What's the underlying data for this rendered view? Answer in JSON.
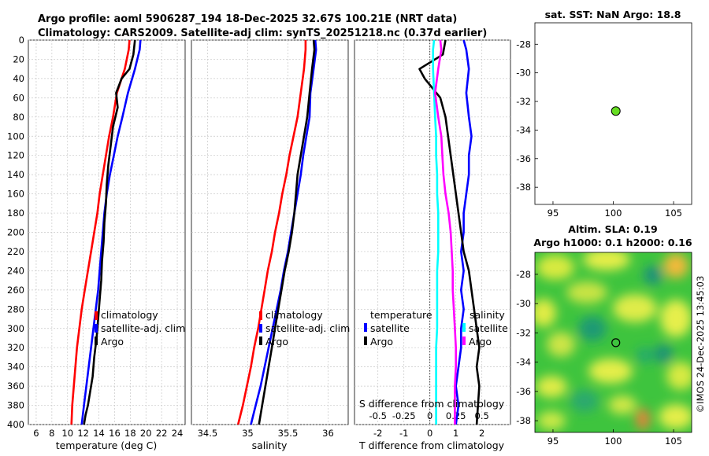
{
  "header": {
    "title1": "Argo profile: aoml 5906287_194 18-Dec-2025 32.67S 100.21E (NRT data)",
    "title2": "Climatology: CARS2009. Satellite-adj clim: synTS_20251218.nc (0.37d earlier)"
  },
  "colors": {
    "climatology": "#ff0000",
    "satellite": "#0000ff",
    "argo": "#000000",
    "salinity_diff": "#ff00ff",
    "temperature_diff": "#00ffff",
    "dot": "#66dd22"
  },
  "chart_data": [
    {
      "type": "line",
      "id": "temperature",
      "xlabel": "temperature (deg C)",
      "ylabel": "",
      "xlim": [
        5,
        25
      ],
      "ylim": [
        0,
        400
      ],
      "y_inverted": true,
      "xticks": [
        6,
        8,
        10,
        12,
        14,
        16,
        18,
        20,
        22,
        24
      ],
      "yticks": [
        0,
        20,
        40,
        60,
        80,
        100,
        120,
        140,
        160,
        180,
        200,
        220,
        240,
        260,
        280,
        300,
        320,
        340,
        360,
        380,
        400
      ],
      "grid": true,
      "legend": [
        "climatology",
        "satellite-adj. clim",
        "Argo"
      ],
      "legend_position": "lower-right",
      "series": [
        {
          "name": "climatology",
          "color_key": "climatology",
          "x": [
            17.9,
            17.8,
            17.3,
            16.3,
            15.8,
            15.3,
            14.9,
            14.5,
            14.1,
            13.8,
            13.4,
            13.0,
            12.6,
            12.2,
            11.8,
            11.5,
            11.2,
            11.0,
            10.8,
            10.6,
            10.5
          ],
          "y": [
            0,
            10,
            30,
            55,
            80,
            100,
            120,
            140,
            160,
            180,
            200,
            220,
            240,
            260,
            280,
            300,
            320,
            340,
            360,
            380,
            400
          ]
        },
        {
          "name": "satellite-adj. clim",
          "color_key": "satellite",
          "x": [
            19.3,
            19.2,
            18.6,
            17.7,
            17.0,
            16.4,
            15.9,
            15.4,
            15.0,
            14.7,
            14.5,
            14.3,
            14.1,
            13.9,
            13.6,
            13.3,
            13.0,
            12.7,
            12.4,
            12.1,
            11.8
          ],
          "y": [
            0,
            10,
            30,
            55,
            80,
            100,
            120,
            140,
            160,
            180,
            200,
            220,
            240,
            260,
            280,
            300,
            320,
            340,
            360,
            380,
            400
          ]
        },
        {
          "name": "Argo",
          "color_key": "argo",
          "x": [
            18.6,
            18.4,
            17.9,
            16.9,
            16.2,
            16.4,
            15.8,
            15.5,
            15.2,
            15.0,
            14.9,
            14.7,
            14.6,
            14.4,
            14.3,
            14.1,
            13.9,
            13.7,
            13.4,
            13.2,
            12.8,
            12.6,
            12.3,
            12.1
          ],
          "y": [
            0,
            15,
            30,
            40,
            55,
            70,
            90,
            110,
            130,
            150,
            170,
            190,
            210,
            230,
            250,
            270,
            290,
            310,
            330,
            350,
            370,
            380,
            390,
            400
          ]
        }
      ]
    },
    {
      "type": "line",
      "id": "salinity",
      "xlabel": "salinity",
      "ylabel": "",
      "xlim": [
        34.3,
        36.25
      ],
      "ylim": [
        0,
        400
      ],
      "y_inverted": true,
      "xticks": [
        34.5,
        35,
        35.5,
        36
      ],
      "xtick_labels": [
        "34.5",
        "35",
        "35.5",
        "36"
      ],
      "grid": true,
      "legend": [
        "climatology",
        "satellite-adj. clim",
        "Argo"
      ],
      "legend_position": "lower-right",
      "series": [
        {
          "name": "climatology",
          "color_key": "climatology",
          "x": [
            35.72,
            35.72,
            35.7,
            35.66,
            35.62,
            35.57,
            35.52,
            35.48,
            35.43,
            35.39,
            35.34,
            35.3,
            35.25,
            35.21,
            35.17,
            35.13,
            35.08,
            35.04,
            34.99,
            34.94,
            34.88
          ],
          "y": [
            0,
            10,
            30,
            55,
            80,
            100,
            120,
            140,
            160,
            180,
            200,
            220,
            240,
            260,
            280,
            300,
            320,
            340,
            360,
            380,
            400
          ]
        },
        {
          "name": "satellite-adj. clim",
          "color_key": "satellite",
          "x": [
            35.84,
            35.85,
            35.82,
            35.78,
            35.77,
            35.73,
            35.69,
            35.66,
            35.62,
            35.58,
            35.54,
            35.5,
            35.45,
            35.41,
            35.36,
            35.31,
            35.26,
            35.21,
            35.16,
            35.1,
            35.04
          ],
          "y": [
            0,
            10,
            30,
            55,
            80,
            100,
            120,
            140,
            160,
            180,
            200,
            220,
            240,
            260,
            280,
            300,
            320,
            340,
            360,
            380,
            400
          ]
        },
        {
          "name": "Argo",
          "color_key": "argo",
          "x": [
            35.82,
            35.83,
            35.8,
            35.77,
            35.74,
            35.7,
            35.66,
            35.62,
            35.6,
            35.58,
            35.55,
            35.51,
            35.46,
            35.42,
            35.38,
            35.34,
            35.3,
            35.26,
            35.22,
            35.18,
            35.14
          ],
          "y": [
            0,
            10,
            30,
            55,
            80,
            100,
            120,
            140,
            160,
            180,
            200,
            220,
            240,
            260,
            280,
            300,
            320,
            340,
            360,
            380,
            400
          ]
        }
      ]
    },
    {
      "type": "line",
      "id": "difference",
      "xlabel": "T difference from climatology",
      "x2label": "S difference from climatology",
      "xlim": [
        -2.9,
        3.1
      ],
      "ylim": [
        0,
        400
      ],
      "y_inverted": true,
      "xticks": [
        -2,
        -1,
        0,
        1,
        2
      ],
      "xtick_labels": [
        "-2",
        "-1",
        "0",
        "1",
        "2"
      ],
      "x2ticks": [
        -0.5,
        -0.25,
        0,
        0.25,
        0.5
      ],
      "x2tick_labels": [
        "-0.5",
        "-0.25",
        "0",
        "0.25",
        "0.5"
      ],
      "x2lim": [
        -0.725,
        0.775
      ],
      "zero_line": true,
      "grid": true,
      "legend_temperature": {
        "title": "temperature",
        "items": [
          "satellite",
          "Argo"
        ]
      },
      "legend_salinity": {
        "title": "salinity",
        "items": [
          "satellite",
          "Argo"
        ]
      },
      "series": [
        {
          "name": "temperature satellite",
          "color_key": "satellite",
          "axis": "T",
          "x": [
            1.3,
            1.4,
            1.5,
            1.4,
            1.5,
            1.6,
            1.5,
            1.5,
            1.4,
            1.3,
            1.3,
            1.2,
            1.3,
            1.2,
            1.3,
            1.2,
            1.2,
            1.1,
            1.0,
            1.1,
            1.0
          ],
          "y": [
            0,
            10,
            30,
            55,
            80,
            100,
            120,
            140,
            160,
            180,
            200,
            220,
            240,
            260,
            280,
            300,
            320,
            340,
            360,
            380,
            400
          ]
        },
        {
          "name": "temperature Argo",
          "color_key": "argo",
          "axis": "T",
          "x": [
            0.6,
            0.5,
            -0.4,
            -0.2,
            0.4,
            0.6,
            0.7,
            0.8,
            0.9,
            1.0,
            1.1,
            1.2,
            1.3,
            1.5,
            1.6,
            1.7,
            1.8,
            1.9,
            1.8,
            1.9,
            1.8
          ],
          "y": [
            0,
            15,
            30,
            40,
            60,
            80,
            100,
            120,
            140,
            160,
            180,
            200,
            220,
            240,
            260,
            280,
            300,
            320,
            340,
            360,
            400
          ]
        },
        {
          "name": "salinity satellite",
          "color_key": "temperature_diff",
          "axis": "S",
          "x": [
            0.04,
            0.03,
            0.03,
            0.04,
            0.05,
            0.06,
            0.06,
            0.07,
            0.07,
            0.08,
            0.08,
            0.08,
            0.07,
            0.07,
            0.07,
            0.07,
            0.06,
            0.06,
            0.06,
            0.06,
            0.06
          ],
          "y": [
            0,
            10,
            30,
            55,
            80,
            100,
            120,
            140,
            160,
            180,
            200,
            220,
            240,
            260,
            280,
            300,
            320,
            340,
            360,
            380,
            400
          ]
        },
        {
          "name": "salinity Argo",
          "color_key": "salinity_diff",
          "axis": "S",
          "x": [
            0.1,
            0.11,
            0.08,
            0.05,
            0.08,
            0.11,
            0.12,
            0.13,
            0.15,
            0.18,
            0.2,
            0.21,
            0.22,
            0.22,
            0.23,
            0.24,
            0.25,
            0.25,
            0.24,
            0.24,
            0.24
          ],
          "y": [
            0,
            10,
            30,
            55,
            80,
            100,
            120,
            140,
            160,
            180,
            200,
            220,
            240,
            260,
            280,
            300,
            320,
            340,
            360,
            380,
            400
          ]
        }
      ]
    },
    {
      "type": "scatter",
      "id": "sst_map",
      "title": "sat. SST: NaN Argo: 18.8",
      "xlim": [
        93.5,
        106.5
      ],
      "ylim": [
        -39.2,
        -26.5
      ],
      "xticks": [
        95,
        100,
        105
      ],
      "yticks": [
        -28,
        -30,
        -32,
        -34,
        -36,
        -38
      ],
      "points": [
        {
          "lon": 100.21,
          "lat": -32.67
        }
      ]
    },
    {
      "type": "heatmap",
      "id": "sla_map",
      "title1": "Altim. SLA: 0.19",
      "title2": "Argo h1000: 0.1 h2000: 0.16",
      "xlim": [
        93.5,
        106.5
      ],
      "ylim": [
        -38.8,
        -26.5
      ],
      "xticks": [
        95,
        100,
        105
      ],
      "yticks": [
        -28,
        -30,
        -32,
        -34,
        -36,
        -38
      ],
      "points": [
        {
          "lon": 100.21,
          "lat": -32.67
        }
      ]
    }
  ],
  "credit": "©IMOS 24-Dec-2025 13:45:03"
}
